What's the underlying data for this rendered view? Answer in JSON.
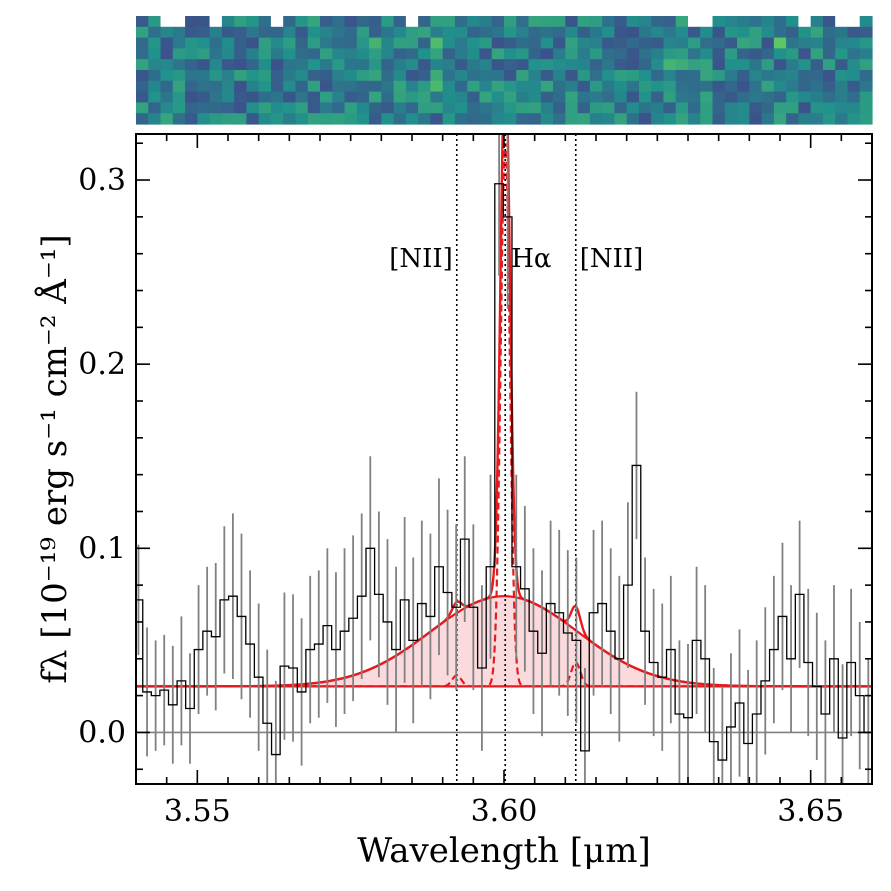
{
  "chart_data": {
    "type": "line",
    "xlabel": "Wavelength [μm]",
    "ylabel": "fλ [10⁻¹⁹ erg s⁻¹ cm⁻² Å⁻¹]",
    "xlim": [
      3.54,
      3.66
    ],
    "ylim": [
      -0.028,
      0.325
    ],
    "x_ticks": [
      {
        "value": 3.55,
        "label": "3.55"
      },
      {
        "value": 3.6,
        "label": "3.60"
      },
      {
        "value": 3.65,
        "label": "3.65"
      }
    ],
    "y_ticks": [
      {
        "value": 0.0,
        "label": "0.0"
      },
      {
        "value": 0.1,
        "label": "0.1"
      },
      {
        "value": 0.2,
        "label": "0.2"
      },
      {
        "value": 0.3,
        "label": "0.3"
      }
    ],
    "annotations": [
      {
        "text": "[NII]",
        "x": 3.5923
      },
      {
        "text": "Hα",
        "x": 3.6002
      },
      {
        "text": "[NII]",
        "x": 3.6117
      }
    ],
    "reference_lines": {
      "vertical": [
        3.5923,
        3.6002,
        3.6117
      ],
      "horizontal": [
        0.0
      ]
    },
    "model": {
      "continuum": 0.025,
      "broad": {
        "center": 3.6,
        "amplitude": 0.049,
        "sigma": 0.012
      },
      "narrow": [
        {
          "center": 3.6002,
          "amplitude": 0.295,
          "sigma": 0.00075
        },
        {
          "center": 3.5923,
          "amplitude": 0.006,
          "sigma": 0.00075
        },
        {
          "center": 3.6117,
          "amplitude": 0.013,
          "sigma": 0.00075
        }
      ],
      "fill_color": "#fadadd",
      "line_color": "#e8191c"
    },
    "data_color": "#000000",
    "errorbar_color": "#808080",
    "series": [
      {
        "name": "observed spectrum",
        "x": [
          3.5404,
          3.5418,
          3.5432,
          3.5446,
          3.546,
          3.5474,
          3.5488,
          3.5502,
          3.5516,
          3.553,
          3.5544,
          3.5558,
          3.5572,
          3.5586,
          3.56,
          3.5614,
          3.5628,
          3.5642,
          3.5656,
          3.567,
          3.5684,
          3.5698,
          3.5712,
          3.5726,
          3.574,
          3.5754,
          3.5768,
          3.5782,
          3.5796,
          3.581,
          3.5824,
          3.5838,
          3.5852,
          3.5866,
          3.588,
          3.5894,
          3.5908,
          3.5922,
          3.5936,
          3.595,
          3.5964,
          3.5978,
          3.5992,
          3.6006,
          3.602,
          3.6034,
          3.6048,
          3.6062,
          3.6076,
          3.609,
          3.6104,
          3.6118,
          3.6132,
          3.6146,
          3.616,
          3.6174,
          3.6188,
          3.6202,
          3.6216,
          3.623,
          3.6244,
          3.6258,
          3.6272,
          3.6286,
          3.63,
          3.6314,
          3.6328,
          3.6342,
          3.6356,
          3.637,
          3.6384,
          3.6398,
          3.6412,
          3.6426,
          3.644,
          3.6454,
          3.6468,
          3.6482,
          3.6496,
          3.651,
          3.6524,
          3.6538,
          3.6552,
          3.6566,
          3.658,
          3.6594
        ],
        "y": [
          0.072,
          0.022,
          0.02,
          0.023,
          0.015,
          0.028,
          0.013,
          0.045,
          0.055,
          0.052,
          0.072,
          0.074,
          0.063,
          0.048,
          0.03,
          0.005,
          -0.012,
          0.036,
          0.035,
          0.022,
          0.045,
          0.048,
          0.058,
          0.045,
          0.055,
          0.062,
          0.074,
          0.1,
          0.075,
          0.06,
          0.045,
          0.072,
          0.05,
          0.07,
          0.063,
          0.09,
          0.076,
          0.068,
          0.105,
          0.068,
          0.035,
          0.09,
          0.298,
          0.28,
          0.09,
          0.078,
          0.055,
          0.043,
          0.07,
          0.065,
          0.054,
          0.05,
          -0.01,
          0.065,
          0.07,
          0.055,
          0.04,
          0.08,
          0.145,
          0.055,
          0.038,
          0.03,
          0.045,
          0.01,
          0.008,
          0.05,
          0.04,
          -0.005,
          -0.015,
          0.003,
          0.016,
          -0.006,
          0.01,
          0.028,
          0.045,
          0.063,
          0.04,
          0.075,
          0.038,
          0.025,
          0.01,
          0.04,
          -0.003,
          0.038,
          0.02,
          0.0
        ],
        "err": [
          0.03,
          0.035,
          0.03,
          0.03,
          0.032,
          0.035,
          0.03,
          0.035,
          0.035,
          0.04,
          0.04,
          0.045,
          0.045,
          0.04,
          0.04,
          0.04,
          0.04,
          0.04,
          0.04,
          0.04,
          0.04,
          0.04,
          0.042,
          0.042,
          0.045,
          0.045,
          0.045,
          0.05,
          0.045,
          0.045,
          0.045,
          0.045,
          0.045,
          0.045,
          0.045,
          0.048,
          0.045,
          0.045,
          0.045,
          0.045,
          0.045,
          0.05,
          0.05,
          0.05,
          0.05,
          0.045,
          0.045,
          0.045,
          0.045,
          0.045,
          0.045,
          0.045,
          0.045,
          0.045,
          0.045,
          0.045,
          0.045,
          0.045,
          0.04,
          0.04,
          0.04,
          0.04,
          0.04,
          0.04,
          0.04,
          0.04,
          0.04,
          0.04,
          0.04,
          0.04,
          0.04,
          0.04,
          0.04,
          0.04,
          0.04,
          0.04,
          0.04,
          0.04,
          0.04,
          0.04,
          0.04,
          0.04,
          0.04,
          0.04,
          0.04,
          0.04
        ]
      }
    ]
  },
  "image_2d": {
    "type": "heatmap",
    "colormap": "viridis",
    "columns": 60,
    "rows": 10,
    "bright_columns": [
      19,
      24,
      43,
      44,
      52
    ],
    "masked_cells": [
      [
        0,
        2
      ],
      [
        0,
        3
      ],
      [
        0,
        6
      ],
      [
        0,
        11
      ],
      [
        0,
        22
      ],
      [
        0,
        45
      ],
      [
        0,
        46
      ],
      [
        0,
        54
      ],
      [
        0,
        57
      ],
      [
        0,
        58
      ]
    ]
  }
}
